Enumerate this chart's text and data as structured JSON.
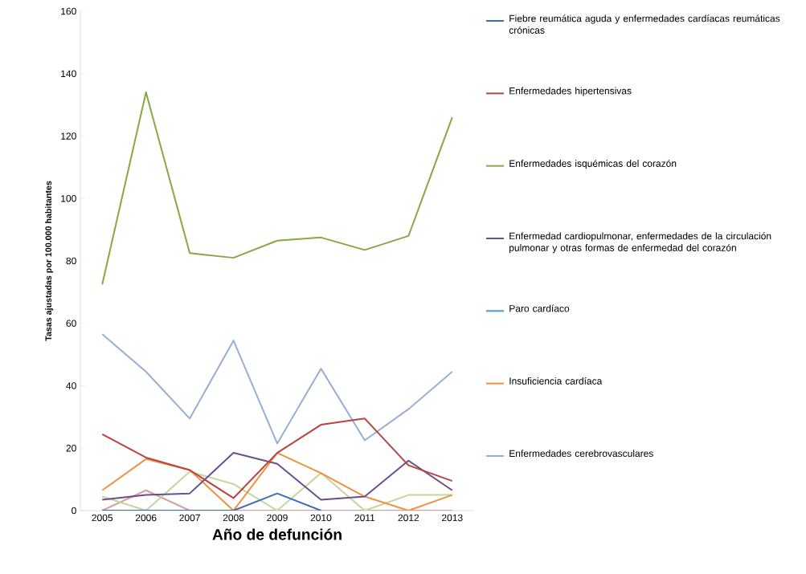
{
  "chart_data": {
    "type": "line",
    "xlabel": "Año de defunción",
    "ylabel": "Tasas ajustadas por 100.000 habitantes",
    "categories": [
      "2005",
      "2006",
      "2007",
      "2008",
      "2009",
      "2010",
      "2011",
      "2012",
      "2013"
    ],
    "ylim": [
      0,
      160
    ],
    "yticks": [
      0,
      20,
      40,
      60,
      80,
      100,
      120,
      140,
      160
    ],
    "grid": false,
    "legend": "right",
    "line_style": "solid",
    "marker": "none",
    "series": [
      {
        "name": "Fiebre reumática aguda y enfermedades cardíacas reumáticas crónicas",
        "color": "#3f6db5",
        "values": [
          0,
          0,
          0,
          0,
          5.5,
          0,
          null,
          null,
          null
        ]
      },
      {
        "name": "Enfermedades hipertensivas",
        "color": "#b8433f",
        "values": [
          24.5,
          17,
          13,
          4,
          18.5,
          27.5,
          29.5,
          14.5,
          9.5
        ]
      },
      {
        "name": "Enfermedades isquémicas del corazón",
        "color": "#86a845",
        "values": [
          72.5,
          134,
          82.5,
          81,
          86.5,
          87.5,
          83.5,
          88,
          126
        ]
      },
      {
        "name": "Enfermedad cardiopulmonar, enfermedades de la circulación pulmonar y otras formas de enfermedad del corazón",
        "color": "#6a4f8c",
        "values": [
          3.5,
          5,
          5.5,
          18.5,
          15,
          3.5,
          4.5,
          16,
          6.5
        ]
      },
      {
        "name": "Paro cardíaco",
        "color": "#3fa0b8",
        "values": [
          null,
          null,
          null,
          null,
          null,
          null,
          null,
          null,
          null
        ]
      },
      {
        "name": "Insuficiencia cardíaca",
        "color": "#f0913e",
        "values": [
          6.5,
          16.5,
          13,
          0,
          18.5,
          12,
          4.5,
          0,
          5
        ]
      },
      {
        "name": "Enfermedades cerebrovasculares",
        "color": "#95b0d4",
        "values": [
          56.5,
          44.5,
          29.5,
          54.5,
          21.5,
          45.5,
          22.5,
          32.5,
          44.5
        ]
      },
      {
        "color": "#c3d69b",
        "values": [
          4.5,
          0,
          12.5,
          8.5,
          0,
          12,
          0,
          5,
          5
        ]
      },
      {
        "color": "#d4a0a0",
        "values": [
          0,
          6.5,
          0,
          0,
          0,
          0,
          0,
          0,
          0
        ]
      }
    ]
  }
}
